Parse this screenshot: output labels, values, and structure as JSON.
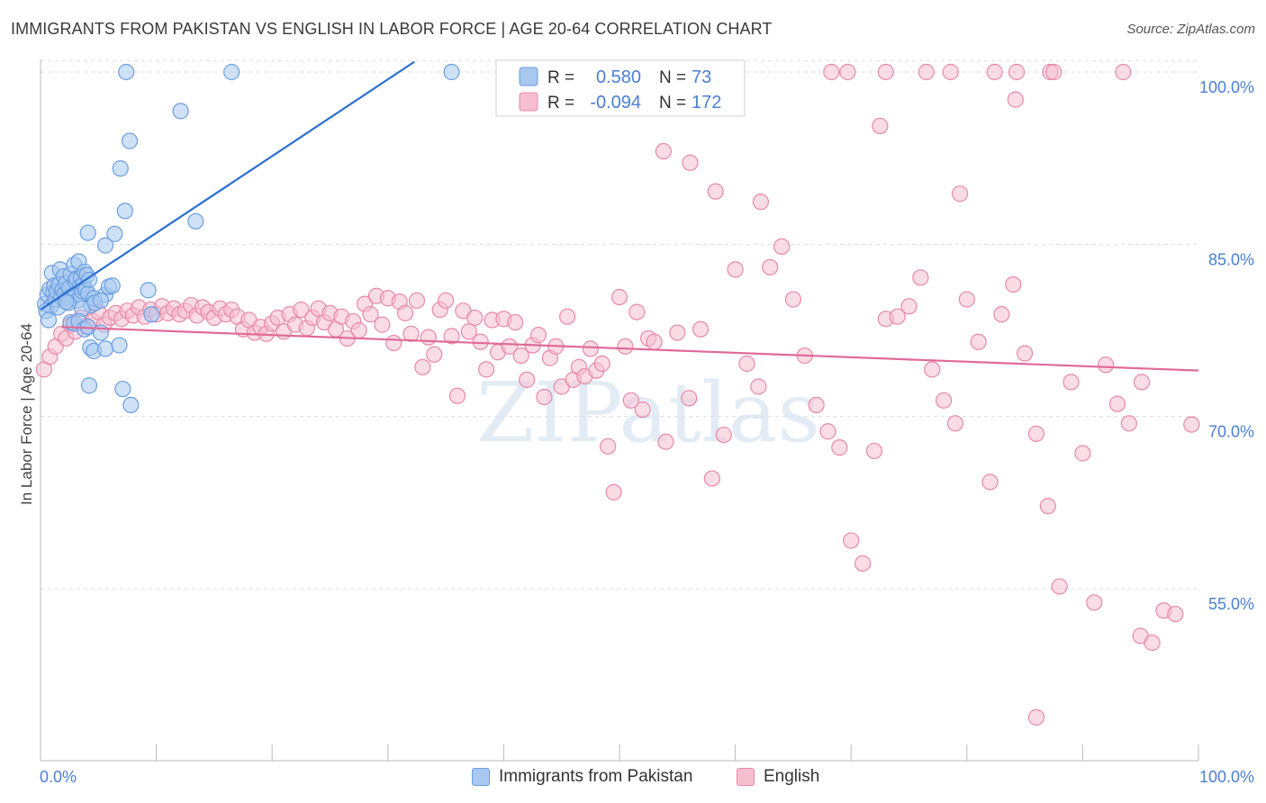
{
  "title": "IMMIGRANTS FROM PAKISTAN VS ENGLISH IN LABOR FORCE | AGE 20-64 CORRELATION CHART",
  "source": "Source: ZipAtlas.com",
  "watermark": "ZIPatlas",
  "colors": {
    "blue_fill": "#a8c8f0",
    "blue_stroke": "#6a9ee0",
    "blue_line": "#2a6fcf",
    "pink_fill": "#f6bfd0",
    "pink_stroke": "#e888a8",
    "pink_line": "#e06a98",
    "axis_label": "#4a7fd4",
    "grid": "#dcdcdc"
  },
  "chart_data": {
    "type": "scatter",
    "title": "IMMIGRANTS FROM PAKISTAN VS ENGLISH IN LABOR FORCE | AGE 20-64 CORRELATION CHART",
    "xlabel": "",
    "ylabel": "In Labor Force | Age 20-64",
    "xlim": [
      0,
      100
    ],
    "ylim": [
      40,
      101
    ],
    "x_tick_labels": [
      "0.0%",
      "100.0%"
    ],
    "y_ticks": [
      55,
      70,
      85,
      100
    ],
    "y_tick_labels": [
      "55.0%",
      "70.0%",
      "85.0%",
      "100.0%"
    ],
    "legend": [
      {
        "label": "R =",
        "r": "0.580",
        "n_label": "N =",
        "n": "73",
        "color": "blue"
      },
      {
        "label": "R =",
        "r": "-0.094",
        "n_label": "N =",
        "n": "172",
        "color": "pink"
      }
    ],
    "series": [
      {
        "name": "Immigrants from Pakistan",
        "color": "blue",
        "trend": {
          "x0": 0,
          "y0": 79.3,
          "x1": 32.3,
          "y1": 100.9
        },
        "points": [
          [
            0.4,
            79.8
          ],
          [
            0.6,
            80.6
          ],
          [
            0.8,
            81.1
          ],
          [
            0.9,
            79.6
          ],
          [
            1.0,
            82.5
          ],
          [
            1.1,
            80.8
          ],
          [
            1.2,
            81.4
          ],
          [
            1.3,
            80.2
          ],
          [
            1.4,
            80.9
          ],
          [
            1.6,
            81.5
          ],
          [
            1.7,
            82.8
          ],
          [
            1.8,
            80.4
          ],
          [
            1.9,
            81.0
          ],
          [
            2.0,
            82.2
          ],
          [
            2.1,
            80.7
          ],
          [
            2.2,
            81.6
          ],
          [
            2.3,
            80.3
          ],
          [
            2.5,
            81.2
          ],
          [
            2.6,
            82.4
          ],
          [
            2.7,
            80.5
          ],
          [
            2.9,
            83.2
          ],
          [
            3.0,
            81.8
          ],
          [
            3.1,
            82.0
          ],
          [
            3.2,
            80.1
          ],
          [
            3.3,
            83.5
          ],
          [
            3.4,
            81.3
          ],
          [
            3.5,
            82.1
          ],
          [
            3.6,
            80.9
          ],
          [
            3.7,
            81.5
          ],
          [
            3.8,
            82.6
          ],
          [
            3.9,
            81.0
          ],
          [
            4.0,
            82.3
          ],
          [
            4.1,
            80.7
          ],
          [
            4.2,
            81.9
          ],
          [
            4.4,
            79.7
          ],
          [
            4.6,
            80.3
          ],
          [
            0.5,
            79.2
          ],
          [
            1.5,
            79.5
          ],
          [
            2.4,
            79.9
          ],
          [
            3.6,
            79.4
          ],
          [
            2.6,
            78.2
          ],
          [
            2.9,
            78.1
          ],
          [
            3.3,
            78.3
          ],
          [
            3.8,
            77.6
          ],
          [
            4.1,
            77.8
          ],
          [
            4.7,
            79.9
          ],
          [
            5.2,
            77.3
          ],
          [
            5.6,
            80.6
          ],
          [
            4.3,
            76.0
          ],
          [
            4.6,
            75.7
          ],
          [
            5.6,
            75.9
          ],
          [
            6.8,
            76.2
          ],
          [
            4.2,
            72.7
          ],
          [
            7.1,
            72.4
          ],
          [
            7.8,
            71.0
          ],
          [
            9.6,
            78.9
          ],
          [
            9.3,
            81.0
          ],
          [
            5.2,
            80.1
          ],
          [
            5.6,
            84.9
          ],
          [
            4.1,
            86.0
          ],
          [
            6.4,
            85.9
          ],
          [
            7.3,
            87.9
          ],
          [
            6.9,
            91.6
          ],
          [
            7.7,
            94.0
          ],
          [
            12.1,
            96.6
          ],
          [
            13.4,
            87.0
          ],
          [
            7.4,
            100.0
          ],
          [
            16.5,
            100.0
          ],
          [
            35.5,
            100.0
          ],
          [
            2.2,
            80.0
          ],
          [
            5.9,
            81.3
          ],
          [
            6.2,
            81.4
          ],
          [
            0.7,
            78.4
          ]
        ]
      },
      {
        "name": "English",
        "color": "pink",
        "trend": {
          "x0": 1.8,
          "y0": 77.8,
          "x1": 100,
          "y1": 74.0
        },
        "points": [
          [
            0.3,
            74.1
          ],
          [
            0.8,
            75.2
          ],
          [
            1.3,
            76.1
          ],
          [
            1.8,
            77.2
          ],
          [
            2.2,
            76.8
          ],
          [
            2.6,
            78.0
          ],
          [
            3.0,
            77.4
          ],
          [
            3.5,
            78.6
          ],
          [
            4.0,
            77.9
          ],
          [
            4.5,
            78.3
          ],
          [
            5.0,
            79.1
          ],
          [
            5.5,
            78.0
          ],
          [
            6.0,
            78.6
          ],
          [
            6.5,
            79.0
          ],
          [
            7.0,
            78.5
          ],
          [
            7.5,
            79.2
          ],
          [
            8.0,
            78.8
          ],
          [
            8.5,
            79.5
          ],
          [
            9.0,
            78.7
          ],
          [
            9.5,
            79.3
          ],
          [
            10.0,
            78.9
          ],
          [
            10.5,
            79.6
          ],
          [
            11.0,
            79.0
          ],
          [
            11.5,
            79.4
          ],
          [
            12.0,
            78.9
          ],
          [
            12.5,
            79.2
          ],
          [
            13.0,
            79.7
          ],
          [
            13.5,
            78.8
          ],
          [
            14.0,
            79.5
          ],
          [
            14.5,
            79.1
          ],
          [
            15.0,
            78.6
          ],
          [
            15.5,
            79.4
          ],
          [
            16.0,
            78.9
          ],
          [
            16.5,
            79.3
          ],
          [
            17.0,
            78.7
          ],
          [
            17.5,
            77.6
          ],
          [
            18.0,
            78.4
          ],
          [
            18.5,
            77.3
          ],
          [
            19.0,
            77.8
          ],
          [
            19.5,
            77.2
          ],
          [
            20.0,
            78.1
          ],
          [
            20.5,
            78.6
          ],
          [
            21.0,
            77.4
          ],
          [
            21.5,
            78.9
          ],
          [
            22.0,
            78.0
          ],
          [
            22.5,
            79.3
          ],
          [
            23.0,
            77.7
          ],
          [
            23.5,
            78.6
          ],
          [
            24.0,
            79.4
          ],
          [
            24.5,
            78.2
          ],
          [
            25.0,
            79.0
          ],
          [
            25.5,
            77.6
          ],
          [
            26.0,
            78.7
          ],
          [
            26.5,
            76.8
          ],
          [
            27.0,
            78.3
          ],
          [
            27.5,
            77.5
          ],
          [
            28.0,
            79.8
          ],
          [
            28.5,
            78.9
          ],
          [
            29.0,
            80.5
          ],
          [
            29.5,
            78.0
          ],
          [
            30.0,
            80.3
          ],
          [
            30.5,
            76.4
          ],
          [
            31.0,
            80.0
          ],
          [
            31.5,
            79.0
          ],
          [
            32.0,
            77.2
          ],
          [
            32.5,
            80.1
          ],
          [
            33.0,
            74.3
          ],
          [
            33.5,
            76.9
          ],
          [
            34.0,
            75.4
          ],
          [
            34.5,
            79.3
          ],
          [
            35.0,
            80.1
          ],
          [
            35.5,
            77.0
          ],
          [
            36.0,
            71.8
          ],
          [
            36.5,
            79.2
          ],
          [
            37.0,
            77.4
          ],
          [
            37.5,
            78.6
          ],
          [
            38.0,
            76.5
          ],
          [
            38.5,
            74.1
          ],
          [
            39.0,
            78.4
          ],
          [
            39.5,
            75.6
          ],
          [
            40.0,
            78.5
          ],
          [
            40.5,
            76.1
          ],
          [
            41.0,
            78.2
          ],
          [
            41.5,
            75.3
          ],
          [
            42.0,
            73.2
          ],
          [
            42.5,
            76.2
          ],
          [
            43.0,
            77.1
          ],
          [
            43.5,
            71.7
          ],
          [
            44.0,
            75.1
          ],
          [
            44.5,
            76.1
          ],
          [
            45.0,
            72.6
          ],
          [
            45.5,
            78.7
          ],
          [
            46.0,
            73.2
          ],
          [
            46.5,
            74.3
          ],
          [
            47.0,
            73.5
          ],
          [
            47.5,
            75.9
          ],
          [
            48.0,
            74.0
          ],
          [
            48.5,
            74.6
          ],
          [
            49.0,
            67.4
          ],
          [
            49.5,
            63.4
          ],
          [
            50.0,
            80.4
          ],
          [
            50.5,
            76.1
          ],
          [
            51.0,
            71.4
          ],
          [
            51.5,
            79.1
          ],
          [
            52.0,
            70.6
          ],
          [
            52.5,
            76.8
          ],
          [
            53.0,
            76.5
          ],
          [
            54.0,
            67.8
          ],
          [
            55.0,
            77.3
          ],
          [
            56.0,
            71.6
          ],
          [
            57.0,
            77.6
          ],
          [
            58.0,
            64.6
          ],
          [
            59.0,
            68.4
          ],
          [
            60.0,
            82.8
          ],
          [
            61.0,
            74.6
          ],
          [
            62.0,
            72.6
          ],
          [
            63.0,
            83.0
          ],
          [
            64.0,
            84.8
          ],
          [
            65.0,
            80.2
          ],
          [
            66.0,
            75.3
          ],
          [
            67.0,
            71.0
          ],
          [
            68.0,
            68.7
          ],
          [
            69.0,
            67.3
          ],
          [
            70.0,
            59.2
          ],
          [
            71.0,
            57.2
          ],
          [
            72.0,
            67.0
          ],
          [
            73.0,
            78.5
          ],
          [
            74.0,
            78.7
          ],
          [
            75.0,
            79.6
          ],
          [
            76.0,
            82.1
          ],
          [
            77.0,
            74.1
          ],
          [
            78.0,
            71.4
          ],
          [
            79.0,
            69.4
          ],
          [
            80.0,
            80.2
          ],
          [
            81.0,
            76.5
          ],
          [
            82.0,
            64.3
          ],
          [
            83.0,
            78.9
          ],
          [
            84.0,
            81.5
          ],
          [
            85.0,
            75.5
          ],
          [
            86.0,
            68.5
          ],
          [
            87.0,
            62.2
          ],
          [
            88.0,
            55.2
          ],
          [
            89.0,
            73.0
          ],
          [
            90.0,
            66.8
          ],
          [
            91.0,
            53.8
          ],
          [
            92.0,
            74.5
          ],
          [
            93.0,
            71.1
          ],
          [
            94.0,
            69.4
          ],
          [
            95.0,
            50.9
          ],
          [
            96.0,
            50.3
          ],
          [
            97.0,
            53.1
          ],
          [
            98.0,
            52.8
          ],
          [
            53.8,
            93.1
          ],
          [
            56.1,
            92.1
          ],
          [
            58.3,
            89.6
          ],
          [
            62.2,
            88.7
          ],
          [
            72.5,
            95.3
          ],
          [
            79.4,
            89.4
          ],
          [
            84.2,
            97.6
          ],
          [
            87.2,
            100.0
          ],
          [
            68.3,
            100.0
          ],
          [
            69.7,
            100.0
          ],
          [
            73.0,
            100.0
          ],
          [
            76.5,
            100.0
          ],
          [
            78.6,
            100.0
          ],
          [
            82.4,
            100.0
          ],
          [
            84.3,
            100.0
          ],
          [
            87.5,
            100.0
          ],
          [
            93.5,
            100.0
          ],
          [
            99.4,
            69.3
          ],
          [
            95.1,
            73.0
          ],
          [
            86.0,
            43.8
          ]
        ]
      }
    ]
  },
  "bottom_legend": {
    "items": [
      "Immigrants from Pakistan",
      "English"
    ]
  }
}
